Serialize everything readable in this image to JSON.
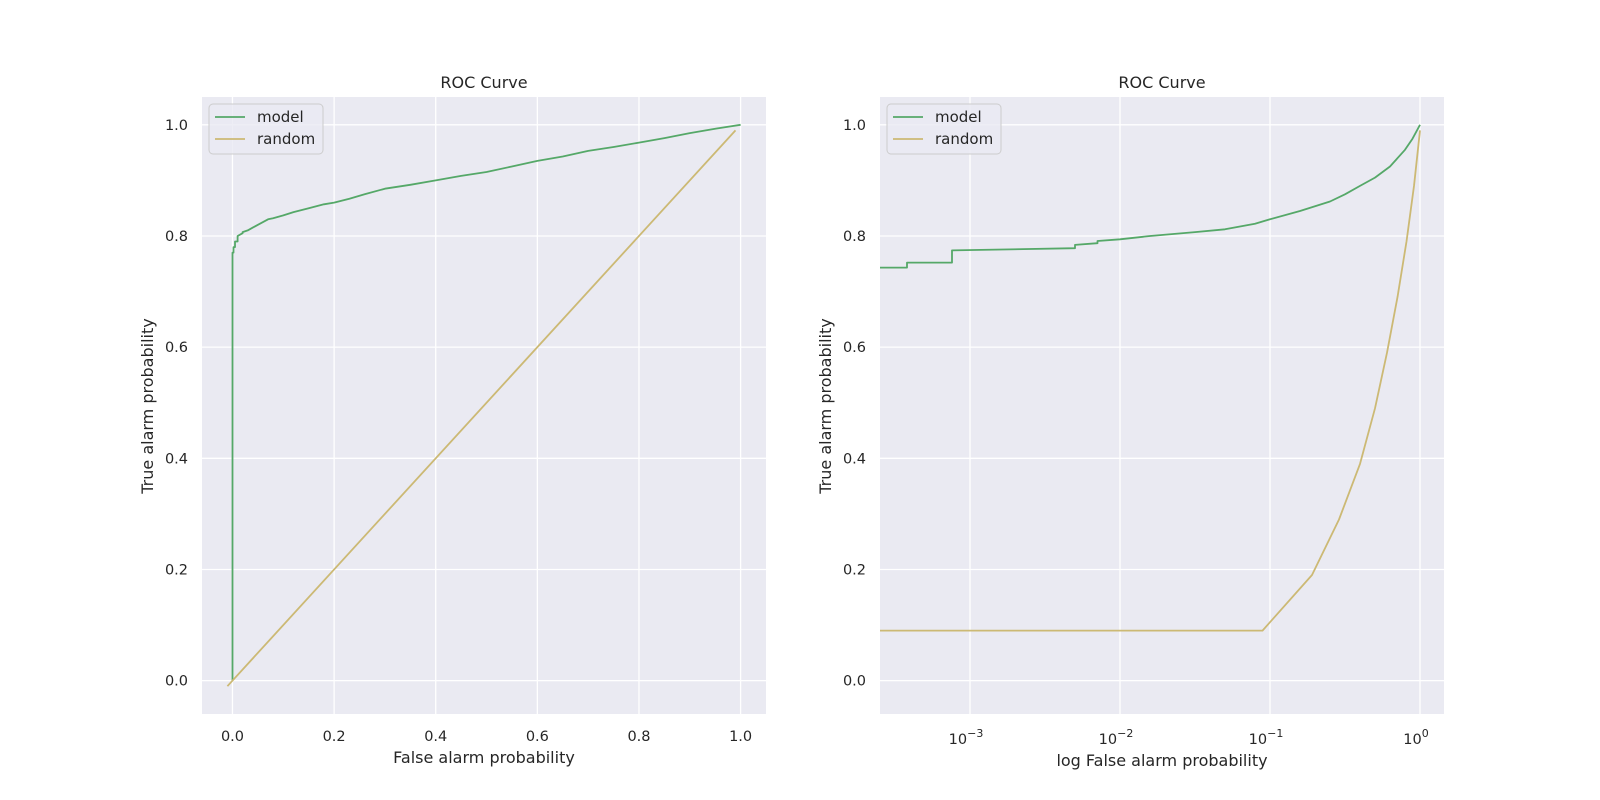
{
  "colors": {
    "background": "#eaeaf2",
    "grid": "#ffffff",
    "model": "#55a868",
    "random": "#ccb974",
    "text": "#262626"
  },
  "chart_data": [
    {
      "type": "line",
      "title": "ROC Curve",
      "xlabel": "False alarm probability",
      "ylabel": "True alarm probability",
      "xscale": "linear",
      "xlim": [
        -0.06,
        1.05
      ],
      "ylim": [
        -0.06,
        1.05
      ],
      "xticks": [
        0.0,
        0.2,
        0.4,
        0.6,
        0.8,
        1.0
      ],
      "xtick_labels": [
        "0.0",
        "0.2",
        "0.4",
        "0.6",
        "0.8",
        "1.0"
      ],
      "yticks": [
        0.0,
        0.2,
        0.4,
        0.6,
        0.8,
        1.0
      ],
      "ytick_labels": [
        "0.0",
        "0.2",
        "0.4",
        "0.6",
        "0.8",
        "1.0"
      ],
      "grid": true,
      "legend": "top-left",
      "series": [
        {
          "name": "model",
          "color": "#55a868",
          "x": [
            0,
            0,
            0.002,
            0.002,
            0.005,
            0.005,
            0.01,
            0.01,
            0.02,
            0.02,
            0.03,
            0.04,
            0.05,
            0.06,
            0.07,
            0.08,
            0.1,
            0.12,
            0.15,
            0.18,
            0.2,
            0.23,
            0.26,
            0.3,
            0.35,
            0.4,
            0.45,
            0.5,
            0.55,
            0.6,
            0.65,
            0.7,
            0.75,
            0.8,
            0.85,
            0.9,
            0.95,
            1.0
          ],
          "y": [
            0,
            0.77,
            0.77,
            0.78,
            0.78,
            0.79,
            0.79,
            0.8,
            0.805,
            0.807,
            0.81,
            0.815,
            0.82,
            0.825,
            0.83,
            0.832,
            0.837,
            0.843,
            0.85,
            0.857,
            0.86,
            0.867,
            0.875,
            0.885,
            0.892,
            0.9,
            0.908,
            0.915,
            0.925,
            0.935,
            0.943,
            0.953,
            0.96,
            0.968,
            0.976,
            0.985,
            0.993,
            1.0
          ]
        },
        {
          "name": "random",
          "color": "#ccb974",
          "x": [
            -0.01,
            0.99
          ],
          "y": [
            -0.01,
            0.99
          ]
        }
      ]
    },
    {
      "type": "line",
      "title": "ROC Curve",
      "xlabel": "log False alarm probability",
      "ylabel": "True alarm probability",
      "xscale": "log",
      "xlim_log10": [
        -3.6,
        0.16
      ],
      "ylim": [
        -0.06,
        1.05
      ],
      "xticks_log10": [
        -3,
        -2,
        -1,
        0
      ],
      "xtick_labels": [
        "10",
        "10",
        "10",
        "10"
      ],
      "xtick_exponents": [
        "−3",
        "−2",
        "−1",
        "0"
      ],
      "yticks": [
        0.0,
        0.2,
        0.4,
        0.6,
        0.8,
        1.0
      ],
      "ytick_labels": [
        "0.0",
        "0.2",
        "0.4",
        "0.6",
        "0.8",
        "1.0"
      ],
      "grid": true,
      "legend": "top-left",
      "series": [
        {
          "name": "model",
          "color": "#55a868",
          "x_log10": [
            -3.6,
            -3.42,
            -3.42,
            -3.12,
            -3.12,
            -2.3,
            -2.3,
            -2.15,
            -2.15,
            -2.0,
            -1.8,
            -1.5,
            -1.3,
            -1.1,
            -1.0,
            -0.8,
            -0.6,
            -0.5,
            -0.4,
            -0.3,
            -0.2,
            -0.1,
            -0.05,
            0.0
          ],
          "y": [
            0.743,
            0.743,
            0.752,
            0.752,
            0.774,
            0.778,
            0.784,
            0.787,
            0.791,
            0.794,
            0.8,
            0.807,
            0.812,
            0.822,
            0.83,
            0.845,
            0.862,
            0.875,
            0.89,
            0.905,
            0.925,
            0.955,
            0.975,
            1.0
          ]
        },
        {
          "name": "random",
          "color": "#ccb974",
          "x_log10": [
            -3.6,
            -1.05,
            -0.72,
            -0.54,
            -0.4,
            -0.3,
            -0.22,
            -0.15,
            -0.09,
            -0.04,
            0.0
          ],
          "y": [
            0.09,
            0.09,
            0.19,
            0.29,
            0.39,
            0.49,
            0.59,
            0.69,
            0.79,
            0.89,
            0.99
          ]
        }
      ]
    }
  ]
}
